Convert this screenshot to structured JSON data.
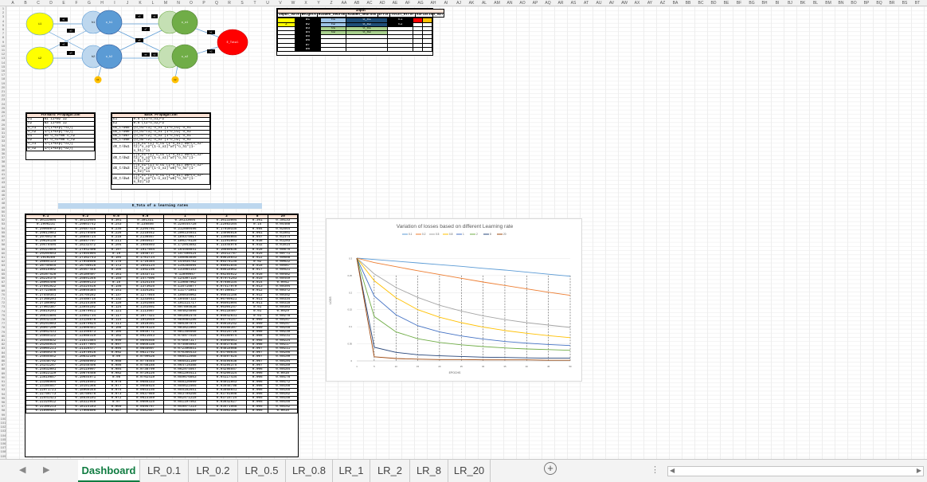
{
  "sheet": {
    "col_headers": [
      "A",
      "B",
      "C",
      "D",
      "E",
      "F",
      "G",
      "H",
      "I",
      "J",
      "K",
      "L",
      "M",
      "N",
      "O",
      "P",
      "Q",
      "R",
      "S",
      "T",
      "U",
      "V",
      "W",
      "X",
      "Y",
      "Z",
      "AA",
      "AB",
      "AC",
      "AD",
      "AE",
      "AF",
      "AG",
      "AH",
      "AI",
      "AJ",
      "AK",
      "AL",
      "AM",
      "AN",
      "AO",
      "AP",
      "AQ",
      "AR",
      "AS",
      "AT",
      "AU",
      "AV",
      "AW",
      "AX",
      "AY",
      "AZ",
      "BA",
      "BB",
      "BC",
      "BD",
      "BE",
      "BF",
      "BG",
      "BH",
      "BI",
      "BJ",
      "BK",
      "BL",
      "BM",
      "BN",
      "BO",
      "BP",
      "BQ",
      "BR",
      "BS",
      "BT",
      "BU"
    ],
    "row_start": 1,
    "row_count": 109
  },
  "network": {
    "input_nodes": [
      "i1",
      "i2"
    ],
    "hidden_nodes": [
      "o_h1",
      "o_h2"
    ],
    "hidden2_nodes": [
      "h1",
      "h2"
    ],
    "output_nodes": [
      "o_o1",
      "o_o2"
    ],
    "target_label": "E_Total",
    "bias_labels": [
      "b1",
      "b2"
    ],
    "weight_labels": [
      "w1",
      "w2",
      "w3",
      "w4",
      "w5",
      "w6",
      "w7",
      "w8"
    ],
    "mini_labels": [
      "h1",
      "h2",
      "o1",
      "o2"
    ]
  },
  "input_table": {
    "title": "Input",
    "headers": [
      "Input_Vals",
      "Weights",
      "Hidden_neuron",
      "Hidden_neurons",
      "Error",
      "Total_error",
      "Variation_val"
    ],
    "input_vals": [
      "",
      "2"
    ],
    "weights": [
      "w1",
      "w2",
      "w3",
      "w4",
      "w5",
      "w6",
      "w7",
      "w8"
    ],
    "hidden_neuron": [
      "h1",
      "h2",
      "o1",
      "o2"
    ],
    "hidden_neurons": [
      "o_h1",
      "o_h2",
      "o_o1",
      "o_o2"
    ],
    "error": [
      "E1",
      "E2"
    ]
  },
  "forward_table": {
    "title": "Forward Propagation",
    "rows": [
      [
        "h1",
        "w1*i1+w2*i2"
      ],
      [
        "h2",
        "w3*i1+w4*i2"
      ],
      [
        "o_h1",
        "1/(1+Exp(-h1))"
      ],
      [
        "o_h2",
        "1/(1+Exp(-h2))"
      ],
      [
        "o1",
        "w5*o_h1+w6*o_h2"
      ],
      [
        "o2",
        "w7*o_h1+w8*o_h2"
      ],
      [
        "o_o1",
        "1/(1+Exp(-o1))"
      ],
      [
        "o_o2",
        "1/(1+Exp(-o2))"
      ]
    ]
  },
  "backward_table": {
    "title": "Back Propagation",
    "rows": [
      [
        "E1",
        "0.5*(t1-o_o1)^2"
      ],
      [
        "E2",
        "0.5*(t2-o_o2)^2"
      ],
      [
        "dE_t/dw5",
        "(o_o1-t1)*o_o1*(1-o_o1)*o_h1"
      ],
      [
        "dE_t/dw6",
        "(o_o1-t1)*o_o1*(1-o_o1)*o_h2"
      ],
      [
        "dE_t/dw7",
        "(o_o2-t2)*o_o2*(1-o_o2)*o_h1"
      ],
      [
        "dE_t/dw8",
        "(o_o2-t2)*o_o2*(1-o_o2)*o_h2"
      ],
      [
        "dE_t/dw1",
        "((o_o1-t1)*o_o1*(1-o_o1)*w5+(o_o2-t2)*o_o2*(1-o_o2)*w7)*o_h1*(1-o_h1)*i1"
      ],
      [
        "dE_t/dw2",
        "((o_o1-t1)*o_o1*(1-o_o1)*w5+(o_o2-t2)*o_o2*(1-o_o2)*w7)*o_h1*(1-o_h1)*i2"
      ],
      [
        "dE_t/dw3",
        "((o_o1-t1)*o_o1*(1-o_o1)*w6+(o_o2-t2)*o_o2*(1-o_o2)*w8)*o_h2*(1-o_h2)*i1"
      ],
      [
        "dE_t/dw4",
        "((o_o1-t1)*o_o1*(1-o_o1)*w6+(o_o2-t2)*o_o2*(1-o_o2)*w8)*o_h2*(1-o_h2)*i2"
      ]
    ]
  },
  "loss_table": {
    "title": "E_Tota of a learning rates",
    "headers": [
      "0.1",
      "0.2",
      "0.5",
      "0.8",
      "1",
      "2",
      "8",
      "20"
    ],
    "rows": [
      [
        "0.30133004",
        "0.30133004",
        "0.301",
        "0.301331",
        "0.30133004",
        "0.30133004",
        "0.301",
        "0.30133"
      ],
      [
        "0.2996231",
        "0.29803742",
        "0.243",
        "0.238846",
        "0.228444728",
        "0.22983354",
        "0.14",
        "0.04488"
      ],
      [
        "0.29908072",
        "0.29487415",
        "0.235",
        "0.2294701",
        "0.212880496",
        "0.17030335",
        "0.084",
        "0.02664"
      ],
      [
        "0.29813981",
        "0.29170498",
        "0.226",
        "0.2218542",
        "0.200134031",
        "0.14996916",
        "0.061",
        "0.01901"
      ],
      [
        "0.29709178",
        "0.28855724",
        "0.218",
        "0.2136557",
        "0.189375017",
        "0.13505664",
        "0.047",
        "0.01474"
      ],
      [
        "0.29626135",
        "0.28547797",
        "0.211",
        "0.2054617",
        "0.180279128",
        "0.12391003",
        "0.038",
        "0.01203"
      ],
      [
        "0.29478494",
        "0.28232472",
        "0.204",
        "0.1985893",
        "0.172043882",
        "0.11544976",
        "0.032",
        "0.01014"
      ],
      [
        "0.29323845",
        "0.27942408",
        "0.197",
        "0.1917854",
        "0.164468841",
        "0.10889836",
        "0.028",
        "0.00876"
      ],
      [
        "0.29205653",
        "0.27654904",
        "0.19",
        "0.1848737",
        "0.157498424",
        "0.10312787",
        "0.025",
        "0.00771"
      ],
      [
        "0.2910288",
        "0.27352743",
        "0.184",
        "0.1781724",
        "0.150983856",
        "0.09816643",
        "0.022",
        "0.00688"
      ],
      [
        "0.28884123",
        "0.27048008",
        "0.178",
        "0.1716384",
        "0.144935782",
        "0.09378135",
        "0.02",
        "0.00622"
      ],
      [
        "0.28749845",
        "0.26756016",
        "0.172",
        "0.1653124",
        "0.139288994",
        "0.08981845",
        "0.018",
        "0.00567"
      ],
      [
        "0.28518902",
        "0.26467448",
        "0.166",
        "0.1592198",
        "0.133984153",
        "0.08618962",
        "0.017",
        "0.00521"
      ],
      [
        "0.28387528",
        "0.26180497",
        "0.161",
        "0.1533711",
        "0.12899847",
        "0.08284022",
        "0.016",
        "0.00482"
      ],
      [
        "0.28226375",
        "0.25891346",
        "0.155",
        "0.1477696",
        "0.124307116",
        "0.07974283",
        "0.015",
        "0.00449"
      ],
      [
        "0.28064498",
        "0.25609133",
        "0.15",
        "0.1424145",
        "0.119887062",
        "0.07686334",
        "0.014",
        "0.0042"
      ],
      [
        "0.27891922",
        "0.25324516",
        "0.146",
        "0.1373025",
        "0.115715877",
        "0.07417979",
        "0.013",
        "0.00394"
      ],
      [
        "0.27723856",
        "0.25045384",
        "0.141",
        "0.1324281",
        "0.111771851",
        "0.07166817",
        "0.012",
        "0.00372"
      ],
      [
        "0.27549341",
        "0.24765282",
        "0.137",
        "0.1277845",
        "0.108035002",
        "0.06931156",
        "0.012",
        "0.00352"
      ],
      [
        "0.27368201",
        "0.24488715",
        "0.132",
        "0.1233641",
        "0.104487122",
        "0.06709621",
        "0.011",
        "0.00334"
      ],
      [
        "0.27186902",
        "0.24214356",
        "0.128",
        "0.1191585",
        "0.101111717",
        "0.06501004",
        "0.011",
        "0.00318"
      ],
      [
        "0.27003387",
        "0.23944192",
        "0.124",
        "0.1151591",
        "0.097894838",
        "0.06304247",
        "0.01",
        "0.00303"
      ],
      [
        "0.26816291",
        "0.23670911",
        "0.121",
        "0.1113567",
        "0.094824895",
        "0.06118407",
        "0.01",
        "0.0029"
      ],
      [
        "0.26631894",
        "0.23402734",
        "0.117",
        "0.1077421",
        "0.091891478",
        "0.05942631",
        "0.01",
        "0.00278"
      ],
      [
        "0.26442119",
        "0.23135878",
        "0.114",
        "0.1043059",
        "0.089085286",
        "0.05776147",
        "0.009",
        "0.00267"
      ],
      [
        "0.26251083",
        "0.22870924",
        "0.111",
        "0.1010391",
        "0.086397974",
        "0.05618252",
        "0.009",
        "0.00257"
      ],
      [
        "0.26057209",
        "0.22608451",
        "0.108",
        "0.0979325",
        "0.083822005",
        "0.05468307",
        "0.009",
        "0.00248"
      ],
      [
        "0.25862431",
        "0.22346873",
        "0.105",
        "0.0949771",
        "0.081350568",
        "0.05325726",
        "0.008",
        "0.00239"
      ],
      [
        "0.25665122",
        "0.22088319",
        "0.102",
        "0.0921643",
        "0.078977516",
        "0.05189974",
        "0.008",
        "0.00231"
      ],
      [
        "0.25466832",
        "0.21831584",
        "0.099",
        "0.0894858",
        "0.076697317",
        "0.05060561",
        "0.008",
        "0.00224"
      ],
      [
        "0.25265914",
        "0.21577904",
        "0.097",
        "0.0869338",
        "0.074504983",
        "0.04937036",
        "0.008",
        "0.00217"
      ],
      [
        "0.25064211",
        "0.21326477",
        "0.094",
        "0.0845007",
        "0.072396031",
        "0.04818988",
        "0.007",
        "0.00211"
      ],
      [
        "0.24860376",
        "0.21078016",
        "0.092",
        "0.0821792",
        "0.070366433",
        "0.04706034",
        "0.007",
        "0.00205"
      ],
      [
        "0.24655542",
        "0.20832105",
        "0.09",
        "0.0799626",
        "0.068412568",
        "0.04597825",
        "0.007",
        "0.00199"
      ],
      [
        "0.24448792",
        "0.20588903",
        "0.088",
        "0.0778445",
        "0.066531189",
        "0.04494038",
        "0.007",
        "0.00194"
      ],
      [
        "0.24241267",
        "0.20348498",
        "0.086",
        "0.0758188",
        "0.064719388",
        "0.04394375",
        "0.007",
        "0.00189"
      ],
      [
        "0.24032001",
        "0.20110997",
        "0.084",
        "0.0738799",
        "0.062974567",
        "0.04298557",
        "0.006",
        "0.00184"
      ],
      [
        "0.23822129",
        "0.19876458",
        "0.082",
        "0.0720226",
        "0.061294411",
        "0.04206324",
        "0.006",
        "0.0018"
      ],
      [
        "0.23610847",
        "0.19644971",
        "0.08",
        "0.0702419",
        "0.059676863",
        "0.04117434",
        "0.006",
        "0.00176"
      ],
      [
        "0.23398904",
        "0.19416591",
        "0.078",
        "0.0685333",
        "0.058120099",
        "0.04031663",
        "0.006",
        "0.00172"
      ],
      [
        "0.23185547",
        "0.19191366",
        "0.077",
        "0.0668925",
        "0.056622505",
        "0.03948798",
        "0.006",
        "0.00168"
      ],
      [
        "0.22971721",
        "0.18969345",
        "0.075",
        "0.0653156",
        "0.055182651",
        "0.03868641",
        "0.006",
        "0.00165"
      ],
      [
        "0.22756773",
        "0.18750576",
        "0.073",
        "0.0637989",
        "0.053799266",
        "0.03791008",
        "0.006",
        "0.00162"
      ],
      [
        "0.22541421",
        "0.18535101",
        "0.072",
        "0.0623389",
        "0.052471218",
        "0.03715724",
        "0.005",
        "0.00158"
      ],
      [
        "0.22325012",
        "0.18322958",
        "0.07",
        "0.0609325",
        "0.051197502",
        "0.03642627",
        "0.005",
        "0.00155"
      ],
      [
        "0.22108213",
        "0.18114183",
        "0.069",
        "0.0595767",
        "0.049977223",
        "0.03571565",
        "0.005",
        "0.00152"
      ],
      [
        "0.21890451",
        "0.17908806",
        "0.067",
        "0.0582687",
        "0.048809584",
        "0.03502396",
        "0.005",
        "0.0015"
      ]
    ]
  },
  "chart_data": {
    "type": "line",
    "title": "Variation of losses based on different Learning rate",
    "xlabel": "EPOCHS",
    "ylabel": "LOSS",
    "x": [
      1,
      5,
      10,
      15,
      20,
      25,
      30,
      35,
      40,
      45,
      50
    ],
    "ylim": [
      0,
      0.35
    ],
    "yticks": [
      0,
      0.05,
      0.1,
      0.15,
      0.2,
      0.25,
      0.3
    ],
    "legend_position": "top",
    "series": [
      {
        "name": "0.1",
        "color": "#5b9bd5",
        "values": [
          0.301,
          0.297,
          0.292,
          0.287,
          0.282,
          0.277,
          0.271,
          0.266,
          0.26,
          0.254,
          0.248
        ]
      },
      {
        "name": "0.2",
        "color": "#ed7d31",
        "values": [
          0.301,
          0.288,
          0.276,
          0.264,
          0.253,
          0.242,
          0.231,
          0.221,
          0.211,
          0.201,
          0.192
        ]
      },
      {
        "name": "0.5",
        "color": "#a5a5a5",
        "values": [
          0.301,
          0.255,
          0.215,
          0.186,
          0.163,
          0.146,
          0.132,
          0.121,
          0.112,
          0.105,
          0.098
        ]
      },
      {
        "name": "0.8",
        "color": "#ffc000",
        "values": [
          0.301,
          0.235,
          0.185,
          0.15,
          0.128,
          0.112,
          0.099,
          0.089,
          0.081,
          0.074,
          0.068
        ]
      },
      {
        "name": "1",
        "color": "#4472c4",
        "values": [
          0.301,
          0.19,
          0.135,
          0.103,
          0.085,
          0.073,
          0.064,
          0.057,
          0.052,
          0.048,
          0.045
        ]
      },
      {
        "name": "2",
        "color": "#70ad47",
        "values": [
          0.301,
          0.13,
          0.085,
          0.065,
          0.054,
          0.047,
          0.042,
          0.038,
          0.035,
          0.033,
          0.031
        ]
      },
      {
        "name": "8",
        "color": "#264478",
        "values": [
          0.301,
          0.04,
          0.025,
          0.018,
          0.015,
          0.013,
          0.011,
          0.01,
          0.009,
          0.008,
          0.008
        ]
      },
      {
        "name": "20",
        "color": "#9e480e",
        "values": [
          0.301,
          0.012,
          0.007,
          0.005,
          0.004,
          0.004,
          0.003,
          0.003,
          0.003,
          0.002,
          0.002
        ]
      }
    ]
  },
  "tabs": {
    "items": [
      "Dashboard",
      "LR_0.1",
      "LR_0.2",
      "LR_0.5",
      "LR_0.8",
      "LR_1",
      "LR_2",
      "LR_8",
      "LR_20"
    ],
    "active": 0,
    "prev": "◀",
    "next": "▶",
    "add": "+",
    "more": "⋮",
    "scroll_left": "◀",
    "scroll_right": "▶"
  }
}
